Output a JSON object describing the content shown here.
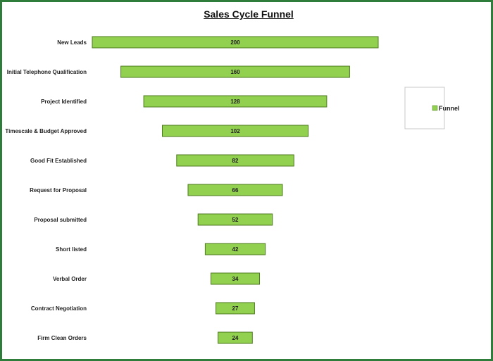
{
  "chart_data": {
    "type": "bar",
    "title": "Sales Cycle Funnel",
    "categories": [
      "New Leads",
      "Initial Telephone Qualification",
      "Project Identified",
      "Timescale & Budget Approved",
      "Good Fit Established",
      "Request for Proposal",
      "Proposal submitted",
      "Short listed",
      "Verbal Order",
      "Contract Negotiation",
      "Firm Clean Orders"
    ],
    "series": [
      {
        "name": "Funnel",
        "values": [
          200,
          160,
          128,
          102,
          82,
          66,
          52,
          42,
          34,
          27,
          24
        ]
      }
    ],
    "orientation": "horizontal-centered",
    "legend_position": "right",
    "grid": false,
    "colors": {
      "bar_fill": "#92d050",
      "bar_stroke": "#4d7a1f",
      "frame": "#2e7d3a"
    }
  }
}
